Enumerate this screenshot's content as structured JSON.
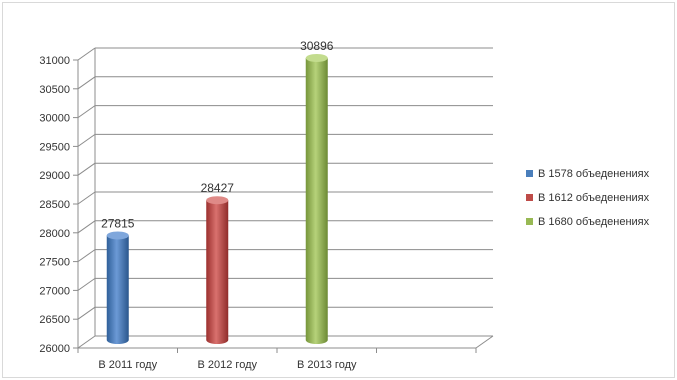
{
  "chart_data": {
    "type": "bar",
    "style": "3d-cylinder",
    "categories": [
      "В 2011 году",
      "В 2012 году",
      "В 2013 году",
      ""
    ],
    "series": [
      {
        "name": "В 1578 объеденениях",
        "color": "#4a7ebb",
        "values": [
          27815,
          null,
          null,
          null
        ]
      },
      {
        "name": "В 1612 объеденениях",
        "color": "#be4b48",
        "values": [
          null,
          28427,
          null,
          null
        ]
      },
      {
        "name": "В 1680 объеденениях",
        "color": "#98b954",
        "values": [
          null,
          null,
          30896,
          null
        ]
      }
    ],
    "data_labels": [
      "27815",
      "28427",
      "30896"
    ],
    "ylim": [
      26000,
      31000
    ],
    "yticks": [
      26000,
      26500,
      27000,
      27500,
      28000,
      28500,
      29000,
      29500,
      30000,
      30500,
      31000
    ],
    "grid": true,
    "legend": "right"
  }
}
